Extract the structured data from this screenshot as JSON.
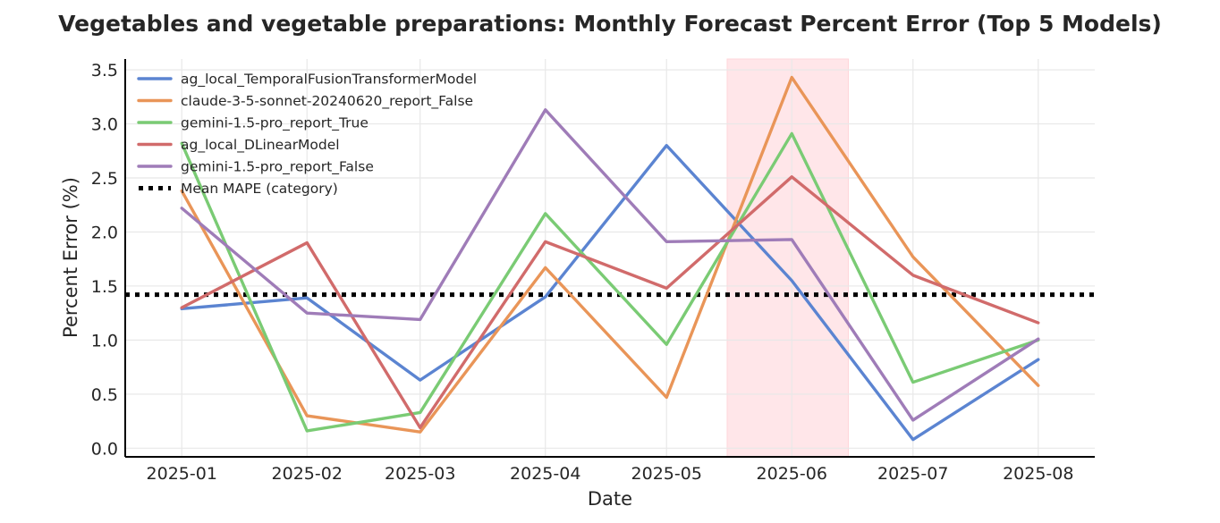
{
  "chart_data": {
    "type": "line",
    "title": "Vegetables and vegetable preparations: Monthly Forecast Percent Error (Top 5 Models)",
    "xlabel": "Date",
    "ylabel": "Percent Error (%)",
    "x": [
      "2025-01",
      "2025-02",
      "2025-03",
      "2025-04",
      "2025-05",
      "2025-06",
      "2025-07",
      "2025-08"
    ],
    "xlim": [
      "2024-12-18",
      "2025-08-15"
    ],
    "ylim": [
      -0.08,
      3.6
    ],
    "yticks": [
      0.0,
      0.5,
      1.0,
      1.5,
      2.0,
      2.5,
      3.0,
      3.5
    ],
    "ytick_labels": [
      "0.0",
      "0.5",
      "1.0",
      "1.5",
      "2.0",
      "2.5",
      "3.0",
      "3.5"
    ],
    "grid": true,
    "legend_position": "top-left",
    "highlight_region": {
      "start": "2025-05-16",
      "end": "2025-06-15",
      "color": "#ffe6e9"
    },
    "series": [
      {
        "name": "ag_local_TemporalFusionTransformerModel",
        "color": "#5b84d1",
        "values": [
          1.29,
          1.39,
          0.63,
          1.4,
          2.8,
          1.55,
          0.08,
          0.82
        ]
      },
      {
        "name": "claude-3-5-sonnet-20240620_report_False",
        "color": "#e99558",
        "values": [
          2.38,
          0.3,
          0.15,
          1.67,
          0.47,
          3.43,
          1.77,
          0.58
        ]
      },
      {
        "name": "gemini-1.5-pro_report_True",
        "color": "#7acb74",
        "values": [
          2.82,
          0.16,
          0.33,
          2.17,
          0.96,
          2.91,
          0.61,
          1.0
        ]
      },
      {
        "name": "ag_local_DLinearModel",
        "color": "#d16b6b",
        "values": [
          1.3,
          1.9,
          0.19,
          1.91,
          1.48,
          2.51,
          1.6,
          1.16
        ]
      },
      {
        "name": "gemini-1.5-pro_report_False",
        "color": "#9f7cb8",
        "values": [
          2.22,
          1.25,
          1.19,
          3.13,
          1.91,
          1.93,
          0.26,
          1.01
        ]
      }
    ],
    "reference_line": {
      "name": "Mean MAPE (category)",
      "value": 1.42,
      "color": "#000000",
      "style": "dotted"
    }
  }
}
